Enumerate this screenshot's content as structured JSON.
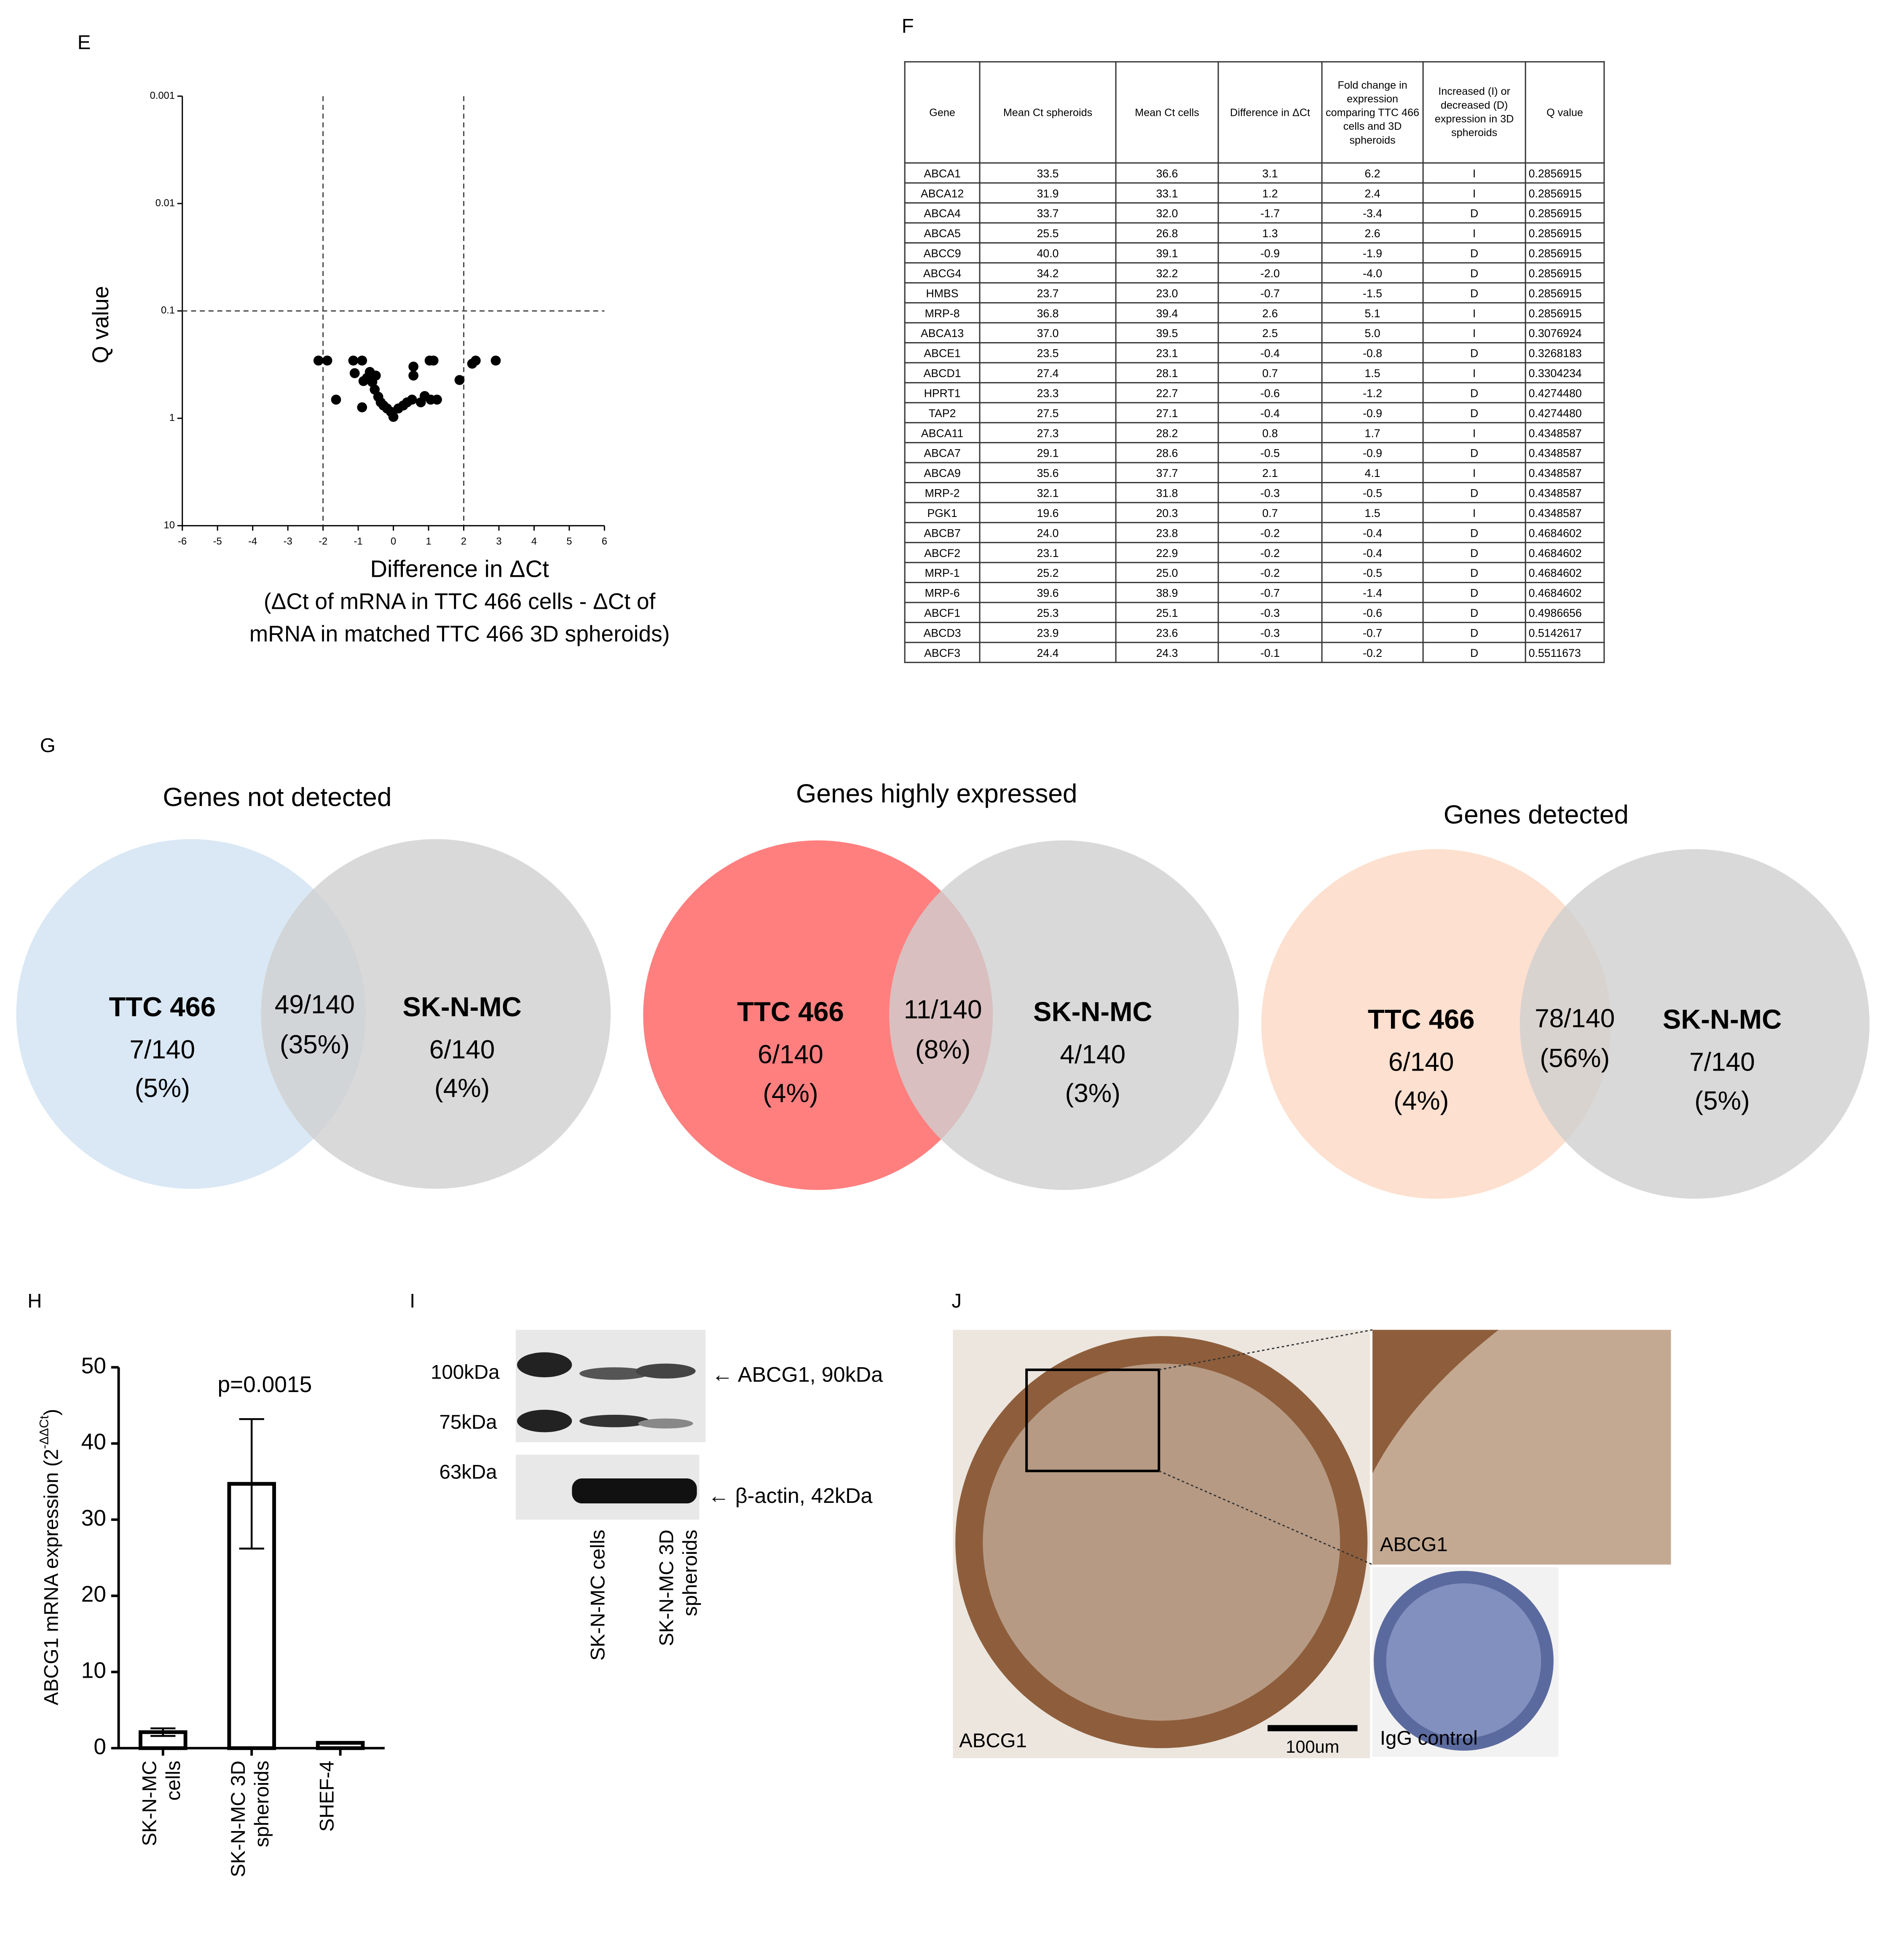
{
  "panels": {
    "e": "E",
    "f": "F",
    "g": "G",
    "h": "H",
    "i": "I",
    "j": "J"
  },
  "chart_data": [
    {
      "type": "scatter",
      "y_label": "Q value",
      "x_label": [
        "Difference in ΔCt",
        "(ΔCt of mRNA in TTC 466 cells - ΔCt of",
        "mRNA in matched TTC 466 3D spheroids)"
      ],
      "x": [
        -2.13,
        -1.88,
        -1.63,
        -1.14,
        -0.89,
        -1.1,
        -0.85,
        -0.75,
        -0.6,
        -0.53,
        -0.89,
        -0.43,
        -0.36,
        -0.28,
        -0.18,
        -0.07,
        0,
        0.14,
        0.28,
        0.39,
        0.53,
        0.57,
        0.57,
        0.78,
        0.89,
        1.03,
        1.14,
        1.06,
        1.24,
        1.88,
        2.24,
        2.34,
        2.91,
        -0.67,
        -0.5
      ],
      "values": [
        0.29,
        0.29,
        0.67,
        0.29,
        0.29,
        0.38,
        0.45,
        0.42,
        0.46,
        0.54,
        0.79,
        0.63,
        0.71,
        0.76,
        0.81,
        0.87,
        0.97,
        0.81,
        0.76,
        0.71,
        0.67,
        0.33,
        0.4,
        0.71,
        0.62,
        0.29,
        0.29,
        0.67,
        0.67,
        0.44,
        0.31,
        0.29,
        0.29,
        0.37,
        0.4
      ],
      "color": "#000000",
      "xlim": [
        -6,
        6
      ],
      "xticks": [
        -6,
        -5,
        -4,
        -3,
        -2,
        -1,
        0,
        1,
        2,
        3,
        4,
        5,
        6
      ],
      "ylim": [
        10,
        0.001
      ],
      "yticks": [
        0.001,
        0.01,
        0.1,
        1,
        10
      ],
      "yscale": "log",
      "vlines": [
        -2,
        2
      ],
      "hlines": [
        0.1
      ]
    },
    {
      "type": "bar",
      "y_label": [
        "ABCG1 mRNA expression (2",
        "-ΔΔCt",
        ")"
      ],
      "annotation": "p=0.0015",
      "categories": [
        "SK-N-MC cells",
        "SK-N-MC 3D spheroids",
        "SHEF-4"
      ],
      "values": [
        2.1,
        34.7,
        0.7
      ],
      "errors": [
        0.5,
        8.5,
        null
      ],
      "color": "#ffffff",
      "ylim": [
        0,
        50
      ],
      "yticks": [
        0,
        10,
        20,
        30,
        40,
        50
      ]
    }
  ],
  "table": {
    "header": [
      "Gene",
      "Mean Ct spheroids",
      "Mean Ct cells",
      "Difference in ΔCt",
      "Fold change in expression comparing TTC 466 cells and 3D spheroids",
      "Increased (I) or decreased (D) expression in 3D spheroids",
      "Q value"
    ],
    "rows": [
      [
        "ABCA1",
        "33.5",
        "36.6",
        "3.1",
        "6.2",
        "I",
        "0.2856915"
      ],
      [
        "ABCA12",
        "31.9",
        "33.1",
        "1.2",
        "2.4",
        "I",
        "0.2856915"
      ],
      [
        "ABCA4",
        "33.7",
        "32.0",
        "-1.7",
        "-3.4",
        "D",
        "0.2856915"
      ],
      [
        "ABCA5",
        "25.5",
        "26.8",
        "1.3",
        "2.6",
        "I",
        "0.2856915"
      ],
      [
        "ABCC9",
        "40.0",
        "39.1",
        "-0.9",
        "-1.9",
        "D",
        "0.2856915"
      ],
      [
        "ABCG4",
        "34.2",
        "32.2",
        "-2.0",
        "-4.0",
        "D",
        "0.2856915"
      ],
      [
        "HMBS",
        "23.7",
        "23.0",
        "-0.7",
        "-1.5",
        "D",
        "0.2856915"
      ],
      [
        "MRP-8",
        "36.8",
        "39.4",
        "2.6",
        "5.1",
        "I",
        "0.2856915"
      ],
      [
        "ABCA13",
        "37.0",
        "39.5",
        "2.5",
        "5.0",
        "I",
        "0.3076924"
      ],
      [
        "ABCE1",
        "23.5",
        "23.1",
        "-0.4",
        "-0.8",
        "D",
        "0.3268183"
      ],
      [
        "ABCD1",
        "27.4",
        "28.1",
        "0.7",
        "1.5",
        "I",
        "0.3304234"
      ],
      [
        "HPRT1",
        "23.3",
        "22.7",
        "-0.6",
        "-1.2",
        "D",
        "0.4274480"
      ],
      [
        "TAP2",
        "27.5",
        "27.1",
        "-0.4",
        "-0.9",
        "D",
        "0.4274480"
      ],
      [
        "ABCA11",
        "27.3",
        "28.2",
        "0.8",
        "1.7",
        "I",
        "0.4348587"
      ],
      [
        "ABCA7",
        "29.1",
        "28.6",
        "-0.5",
        "-0.9",
        "D",
        "0.4348587"
      ],
      [
        "ABCA9",
        "35.6",
        "37.7",
        "2.1",
        "4.1",
        "I",
        "0.4348587"
      ],
      [
        "MRP-2",
        "32.1",
        "31.8",
        "-0.3",
        "-0.5",
        "D",
        "0.4348587"
      ],
      [
        "PGK1",
        "19.6",
        "20.3",
        "0.7",
        "1.5",
        "I",
        "0.4348587"
      ],
      [
        "ABCB7",
        "24.0",
        "23.8",
        "-0.2",
        "-0.4",
        "D",
        "0.4684602"
      ],
      [
        "ABCF2",
        "23.1",
        "22.9",
        "-0.2",
        "-0.4",
        "D",
        "0.4684602"
      ],
      [
        "MRP-1",
        "25.2",
        "25.0",
        "-0.2",
        "-0.5",
        "D",
        "0.4684602"
      ],
      [
        "MRP-6",
        "39.6",
        "38.9",
        "-0.7",
        "-1.4",
        "D",
        "0.4684602"
      ],
      [
        "ABCF1",
        "25.3",
        "25.1",
        "-0.3",
        "-0.6",
        "D",
        "0.4986656"
      ],
      [
        "ABCD3",
        "23.9",
        "23.6",
        "-0.3",
        "-0.7",
        "D",
        "0.5142617"
      ],
      [
        "ABCF3",
        "24.4",
        "24.3",
        "-0.1",
        "-0.2",
        "D",
        "0.5511673"
      ]
    ]
  },
  "venns": [
    {
      "title": "Genes not detected",
      "left": {
        "label": "TTC 466",
        "count": "7/140",
        "pct": "(5%)",
        "color": "#dae8f5"
      },
      "overlap": {
        "count": "49/140",
        "pct": "(35%)"
      },
      "right": {
        "label": "SK-N-MC",
        "count": "6/140",
        "pct": "(4%)",
        "color": "#cfcfcf"
      }
    },
    {
      "title": "Genes highly expressed",
      "left": {
        "label": "TTC 466",
        "count": "6/140",
        "pct": "(4%)",
        "color": "#ff7f7f"
      },
      "overlap": {
        "count": "11/140",
        "pct": "(8%)"
      },
      "right": {
        "label": "SK-N-MC",
        "count": "4/140",
        "pct": "(3%)",
        "color": "#cfcfcf"
      }
    },
    {
      "title": "Genes detected",
      "left": {
        "label": "TTC 466",
        "count": "6/140",
        "pct": "(4%)",
        "color": "#fde0cf"
      },
      "overlap": {
        "count": "78/140",
        "pct": "(56%)"
      },
      "right": {
        "label": "SK-N-MC",
        "count": "7/140",
        "pct": "(5%)",
        "color": "#cfcfcf"
      }
    }
  ],
  "blot": {
    "markers": [
      "100kDa",
      "75kDa",
      "63kDa"
    ],
    "bands": [
      "← ABCG1, 90kDa",
      "← β-actin, 42kDa"
    ],
    "lanes": [
      "SK-N-MC cells",
      "SK-N-MC 3D spheroids"
    ]
  },
  "micrograph": {
    "main_label": "ABCG1",
    "scale": "100um",
    "inset_label": "ABCG1",
    "control_label": "IgG control"
  }
}
